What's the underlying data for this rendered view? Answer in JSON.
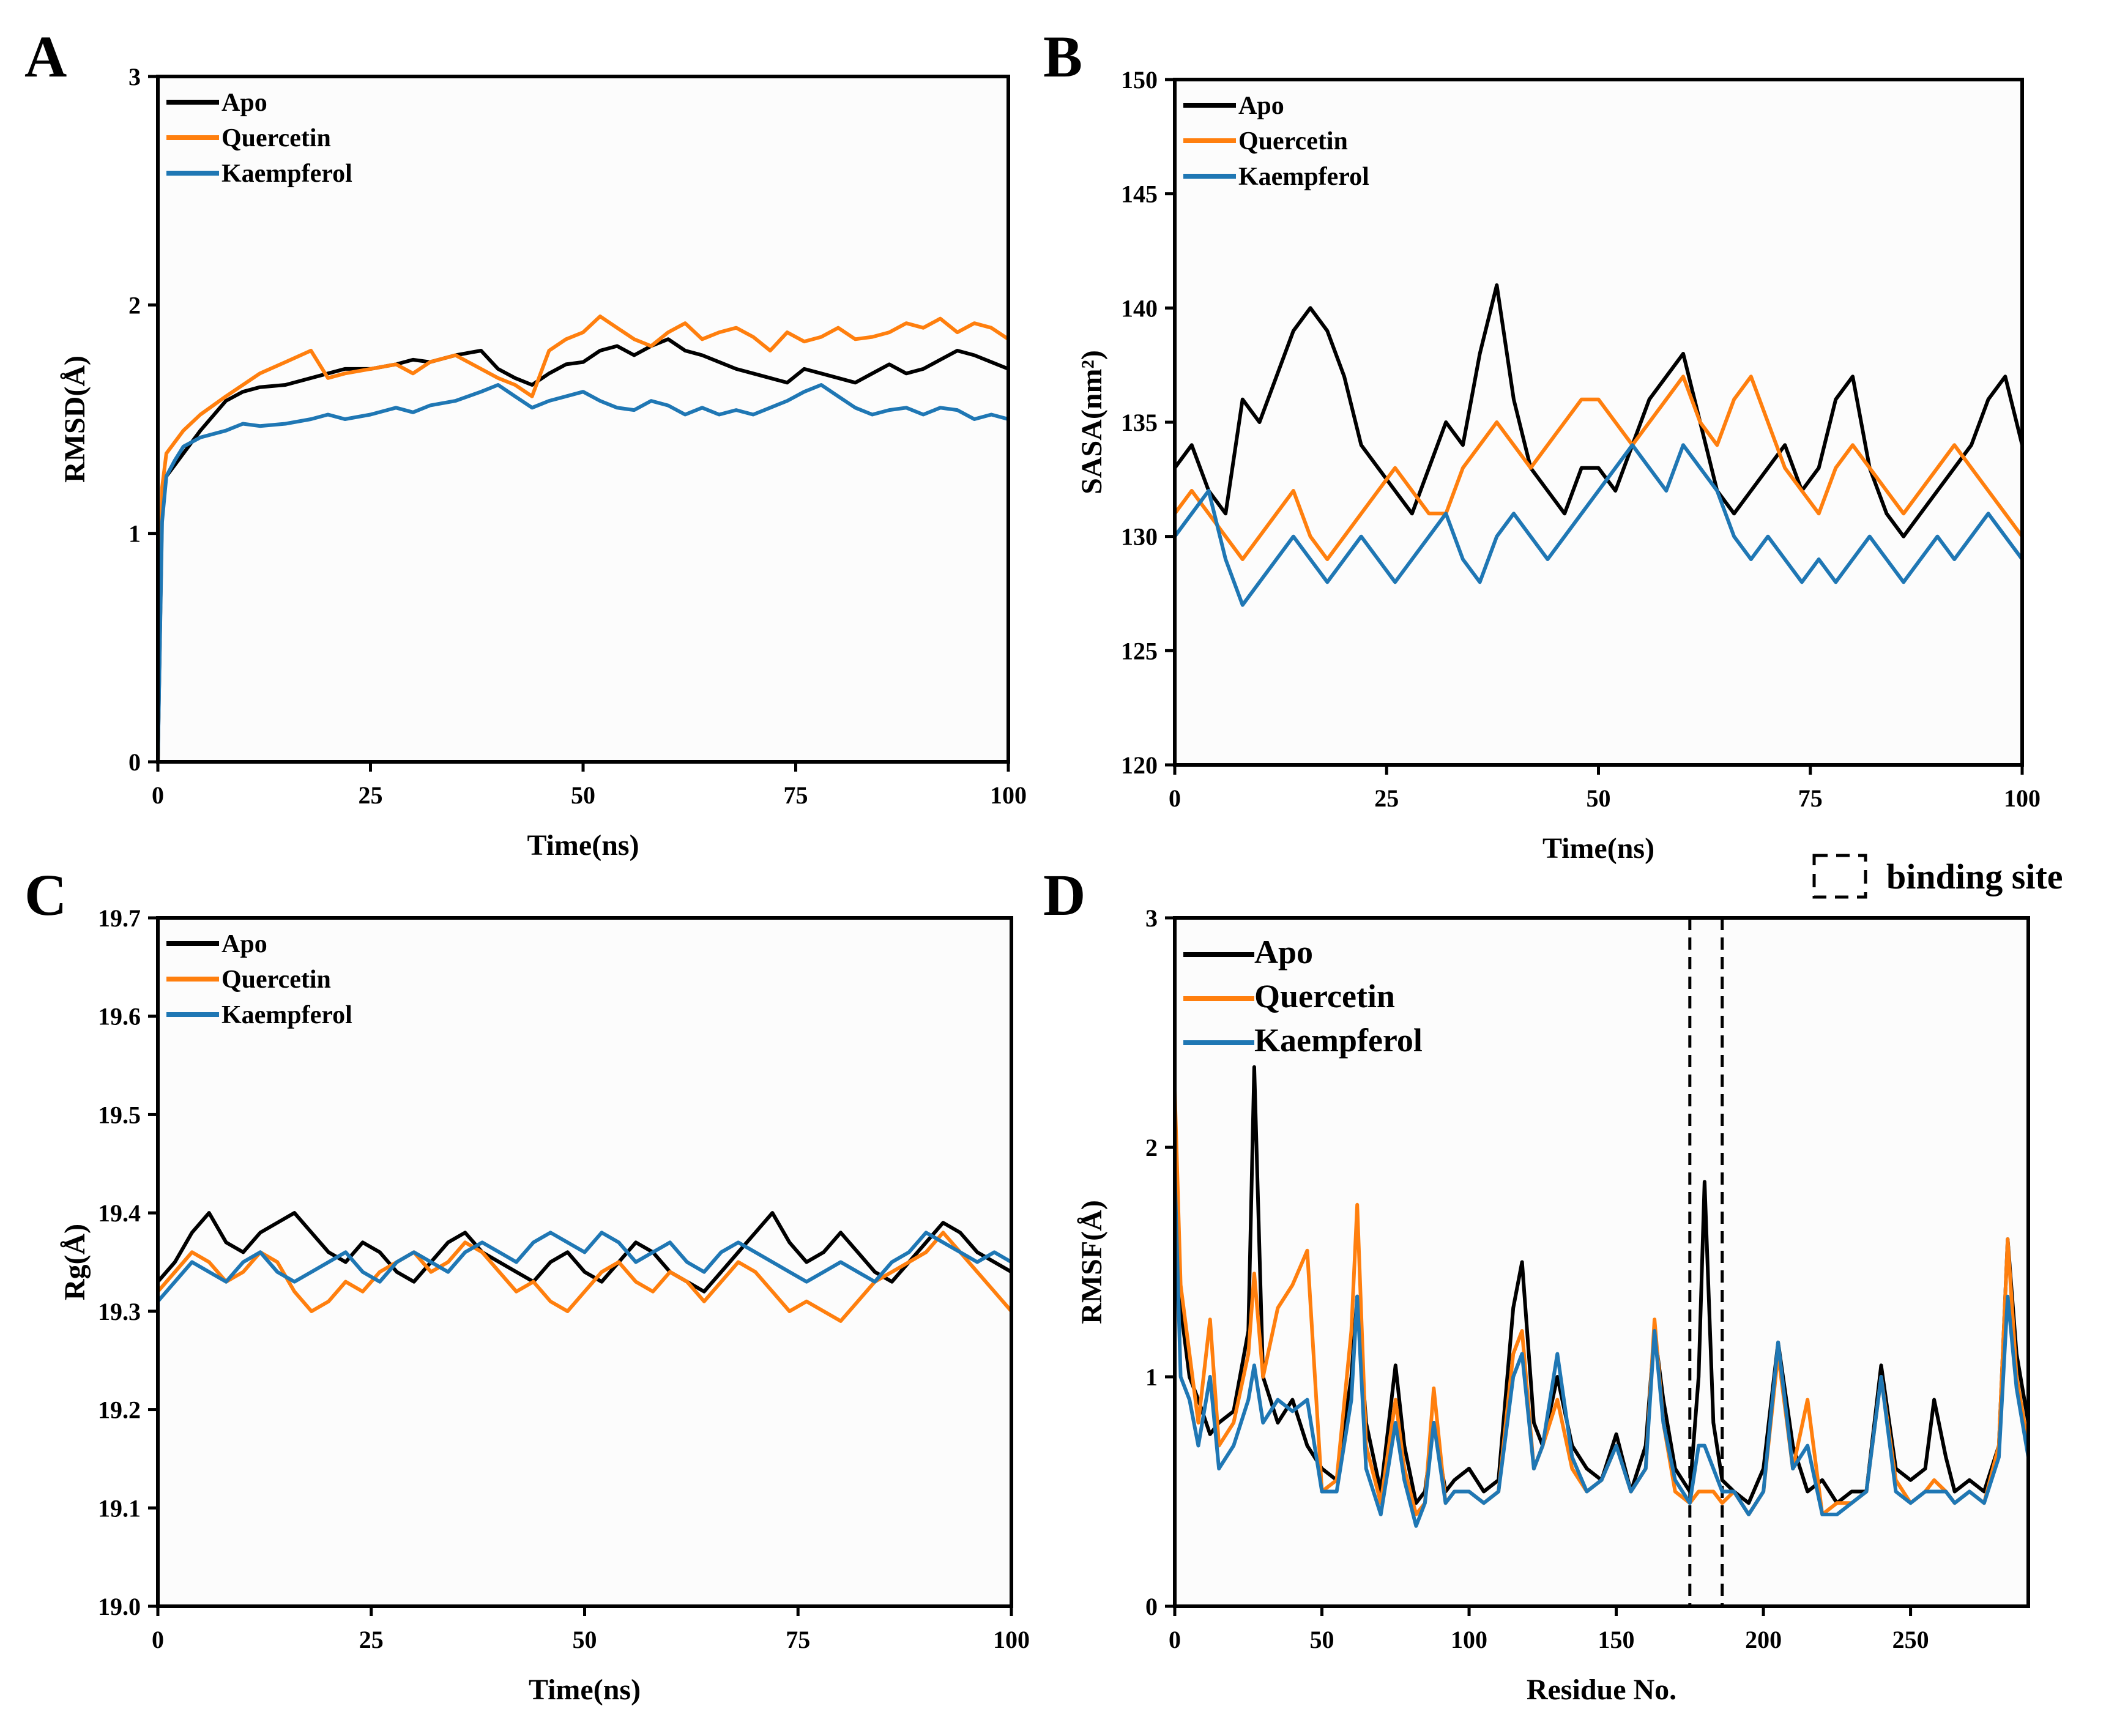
{
  "colors": {
    "Apo": "#000000",
    "Quercetin": "#ff7f0e",
    "Kaempferol": "#1f77b4"
  },
  "binding_site_label": "binding site",
  "chart_data": [
    {
      "id": "A",
      "panel_letter": "A",
      "type": "line",
      "xlabel": "Time(ns)",
      "ylabel": "RMSD(Å)",
      "xlim": [
        0,
        100
      ],
      "ylim": [
        0,
        3
      ],
      "xticks": [
        0,
        25,
        50,
        75,
        100
      ],
      "yticks": [
        0,
        1,
        2,
        3
      ],
      "legend_position": "top-left",
      "grid": false,
      "x": [
        0,
        0.5,
        1,
        2,
        3,
        5,
        8,
        10,
        12,
        15,
        18,
        20,
        22,
        25,
        28,
        30,
        32,
        35,
        38,
        40,
        42,
        44,
        46,
        48,
        50,
        52,
        54,
        56,
        58,
        60,
        62,
        64,
        66,
        68,
        70,
        72,
        74,
        76,
        78,
        80,
        82,
        84,
        86,
        88,
        90,
        92,
        94,
        96,
        98,
        100
      ],
      "series": [
        {
          "name": "Apo",
          "values": [
            0,
            1.1,
            1.25,
            1.3,
            1.35,
            1.45,
            1.58,
            1.62,
            1.64,
            1.65,
            1.68,
            1.7,
            1.72,
            1.72,
            1.74,
            1.76,
            1.75,
            1.78,
            1.8,
            1.72,
            1.68,
            1.65,
            1.7,
            1.74,
            1.75,
            1.8,
            1.82,
            1.78,
            1.82,
            1.85,
            1.8,
            1.78,
            1.75,
            1.72,
            1.7,
            1.68,
            1.66,
            1.72,
            1.7,
            1.68,
            1.66,
            1.7,
            1.74,
            1.7,
            1.72,
            1.76,
            1.8,
            1.78,
            1.75,
            1.72
          ]
        },
        {
          "name": "Quercetin",
          "values": [
            0,
            1.2,
            1.35,
            1.4,
            1.45,
            1.52,
            1.6,
            1.65,
            1.7,
            1.75,
            1.8,
            1.68,
            1.7,
            1.72,
            1.74,
            1.7,
            1.75,
            1.78,
            1.72,
            1.68,
            1.65,
            1.6,
            1.8,
            1.85,
            1.88,
            1.95,
            1.9,
            1.85,
            1.82,
            1.88,
            1.92,
            1.85,
            1.88,
            1.9,
            1.86,
            1.8,
            1.88,
            1.84,
            1.86,
            1.9,
            1.85,
            1.86,
            1.88,
            1.92,
            1.9,
            1.94,
            1.88,
            1.92,
            1.9,
            1.85
          ]
        },
        {
          "name": "Kaempferol",
          "values": [
            0,
            1.05,
            1.25,
            1.32,
            1.38,
            1.42,
            1.45,
            1.48,
            1.47,
            1.48,
            1.5,
            1.52,
            1.5,
            1.52,
            1.55,
            1.53,
            1.56,
            1.58,
            1.62,
            1.65,
            1.6,
            1.55,
            1.58,
            1.6,
            1.62,
            1.58,
            1.55,
            1.54,
            1.58,
            1.56,
            1.52,
            1.55,
            1.52,
            1.54,
            1.52,
            1.55,
            1.58,
            1.62,
            1.65,
            1.6,
            1.55,
            1.52,
            1.54,
            1.55,
            1.52,
            1.55,
            1.54,
            1.5,
            1.52,
            1.5
          ]
        }
      ]
    },
    {
      "id": "B",
      "panel_letter": "B",
      "type": "line",
      "xlabel": "Time(ns)",
      "ylabel": "SASA(nm²)",
      "xlim": [
        0,
        100
      ],
      "ylim": [
        120,
        150
      ],
      "xticks": [
        0,
        25,
        50,
        75,
        100
      ],
      "yticks": [
        120,
        125,
        130,
        135,
        140,
        145,
        150
      ],
      "legend_position": "top-left",
      "grid": false,
      "x": [
        0,
        2,
        4,
        6,
        8,
        10,
        12,
        14,
        16,
        18,
        20,
        22,
        24,
        26,
        28,
        30,
        32,
        34,
        36,
        38,
        40,
        42,
        44,
        46,
        48,
        50,
        52,
        54,
        56,
        58,
        60,
        62,
        64,
        66,
        68,
        70,
        72,
        74,
        76,
        78,
        80,
        82,
        84,
        86,
        88,
        90,
        92,
        94,
        96,
        98,
        100
      ],
      "series": [
        {
          "name": "Apo",
          "values": [
            133,
            134,
            132,
            131,
            136,
            135,
            137,
            139,
            140,
            139,
            137,
            134,
            133,
            132,
            131,
            133,
            135,
            134,
            138,
            141,
            136,
            133,
            132,
            131,
            133,
            133,
            132,
            134,
            136,
            137,
            138,
            135,
            132,
            131,
            132,
            133,
            134,
            132,
            133,
            136,
            137,
            133,
            131,
            130,
            131,
            132,
            133,
            134,
            136,
            137,
            134
          ]
        },
        {
          "name": "Quercetin",
          "values": [
            131,
            132,
            131,
            130,
            129,
            130,
            131,
            132,
            130,
            129,
            130,
            131,
            132,
            133,
            132,
            131,
            131,
            133,
            134,
            135,
            134,
            133,
            134,
            135,
            136,
            136,
            135,
            134,
            135,
            136,
            137,
            135,
            134,
            136,
            137,
            135,
            133,
            132,
            131,
            133,
            134,
            133,
            132,
            131,
            132,
            133,
            134,
            133,
            132,
            131,
            130
          ]
        },
        {
          "name": "Kaempferol",
          "values": [
            130,
            131,
            132,
            129,
            127,
            128,
            129,
            130,
            129,
            128,
            129,
            130,
            129,
            128,
            129,
            130,
            131,
            129,
            128,
            130,
            131,
            130,
            129,
            130,
            131,
            132,
            133,
            134,
            133,
            132,
            134,
            133,
            132,
            130,
            129,
            130,
            129,
            128,
            129,
            128,
            129,
            130,
            129,
            128,
            129,
            130,
            129,
            130,
            131,
            130,
            129
          ]
        }
      ]
    },
    {
      "id": "C",
      "panel_letter": "C",
      "type": "line",
      "xlabel": "Time(ns)",
      "ylabel": "Rg(Å)",
      "xlim": [
        0,
        100
      ],
      "ylim": [
        19.0,
        19.7
      ],
      "xticks": [
        0,
        25,
        50,
        75,
        100
      ],
      "yticks": [
        "19.0",
        "19.1",
        "19.2",
        "19.3",
        "19.4",
        "19.5",
        "19.6",
        "19.7"
      ],
      "legend_position": "top-left",
      "grid": false,
      "x": [
        0,
        2,
        4,
        6,
        8,
        10,
        12,
        14,
        16,
        18,
        20,
        22,
        24,
        26,
        28,
        30,
        32,
        34,
        36,
        38,
        40,
        42,
        44,
        46,
        48,
        50,
        52,
        54,
        56,
        58,
        60,
        62,
        64,
        66,
        68,
        70,
        72,
        74,
        76,
        78,
        80,
        82,
        84,
        86,
        88,
        90,
        92,
        94,
        96,
        98,
        100
      ],
      "series": [
        {
          "name": "Apo",
          "values": [
            19.33,
            19.35,
            19.38,
            19.4,
            19.37,
            19.36,
            19.38,
            19.39,
            19.4,
            19.38,
            19.36,
            19.35,
            19.37,
            19.36,
            19.34,
            19.33,
            19.35,
            19.37,
            19.38,
            19.36,
            19.35,
            19.34,
            19.33,
            19.35,
            19.36,
            19.34,
            19.33,
            19.35,
            19.37,
            19.36,
            19.34,
            19.33,
            19.32,
            19.34,
            19.36,
            19.38,
            19.4,
            19.37,
            19.35,
            19.36,
            19.38,
            19.36,
            19.34,
            19.33,
            19.35,
            19.37,
            19.39,
            19.38,
            19.36,
            19.35,
            19.34
          ]
        },
        {
          "name": "Quercetin",
          "values": [
            19.32,
            19.34,
            19.36,
            19.35,
            19.33,
            19.34,
            19.36,
            19.35,
            19.32,
            19.3,
            19.31,
            19.33,
            19.32,
            19.34,
            19.35,
            19.36,
            19.34,
            19.35,
            19.37,
            19.36,
            19.34,
            19.32,
            19.33,
            19.31,
            19.3,
            19.32,
            19.34,
            19.35,
            19.33,
            19.32,
            19.34,
            19.33,
            19.31,
            19.33,
            19.35,
            19.34,
            19.32,
            19.3,
            19.31,
            19.3,
            19.29,
            19.31,
            19.33,
            19.34,
            19.35,
            19.36,
            19.38,
            19.36,
            19.34,
            19.32,
            19.3
          ]
        },
        {
          "name": "Kaempferol",
          "values": [
            19.31,
            19.33,
            19.35,
            19.34,
            19.33,
            19.35,
            19.36,
            19.34,
            19.33,
            19.34,
            19.35,
            19.36,
            19.34,
            19.33,
            19.35,
            19.36,
            19.35,
            19.34,
            19.36,
            19.37,
            19.36,
            19.35,
            19.37,
            19.38,
            19.37,
            19.36,
            19.38,
            19.37,
            19.35,
            19.36,
            19.37,
            19.35,
            19.34,
            19.36,
            19.37,
            19.36,
            19.35,
            19.34,
            19.33,
            19.34,
            19.35,
            19.34,
            19.33,
            19.35,
            19.36,
            19.38,
            19.37,
            19.36,
            19.35,
            19.36,
            19.35
          ]
        }
      ]
    },
    {
      "id": "D",
      "panel_letter": "D",
      "type": "line",
      "xlabel": "Residue No.",
      "ylabel": "RMSF(Å)",
      "xlim": [
        0,
        290
      ],
      "ylim": [
        0,
        3
      ],
      "xticks": [
        0,
        50,
        100,
        150,
        200,
        250
      ],
      "yticks": [
        0,
        1,
        2,
        3
      ],
      "legend_position": "top-left",
      "grid": false,
      "binding_site": [
        175,
        186
      ],
      "x": [
        0,
        2,
        5,
        8,
        12,
        15,
        20,
        25,
        27,
        30,
        35,
        40,
        45,
        50,
        55,
        60,
        62,
        65,
        70,
        75,
        78,
        82,
        85,
        88,
        92,
        95,
        100,
        105,
        110,
        115,
        118,
        122,
        125,
        130,
        135,
        140,
        145,
        150,
        155,
        160,
        163,
        166,
        170,
        175,
        178,
        180,
        183,
        186,
        190,
        195,
        200,
        205,
        210,
        215,
        220,
        225,
        230,
        235,
        240,
        245,
        250,
        255,
        258,
        262,
        265,
        270,
        275,
        280,
        283,
        286,
        290
      ],
      "series": [
        {
          "name": "Apo",
          "values": [
            1.9,
            1.3,
            1.0,
            0.9,
            0.75,
            0.8,
            0.85,
            1.2,
            2.35,
            1.0,
            0.8,
            0.9,
            0.7,
            0.6,
            0.55,
            1.0,
            1.35,
            0.8,
            0.5,
            1.05,
            0.7,
            0.45,
            0.5,
            0.8,
            0.5,
            0.55,
            0.6,
            0.5,
            0.55,
            1.3,
            1.5,
            0.8,
            0.7,
            1.0,
            0.7,
            0.6,
            0.55,
            0.75,
            0.5,
            0.7,
            1.2,
            0.9,
            0.6,
            0.5,
            1.0,
            1.85,
            0.8,
            0.55,
            0.5,
            0.45,
            0.6,
            1.15,
            0.7,
            0.5,
            0.55,
            0.45,
            0.5,
            0.5,
            1.05,
            0.6,
            0.55,
            0.6,
            0.9,
            0.65,
            0.5,
            0.55,
            0.5,
            0.7,
            1.6,
            1.1,
            0.8
          ]
        },
        {
          "name": "Quercetin",
          "values": [
            2.25,
            1.4,
            1.1,
            0.8,
            1.25,
            0.7,
            0.8,
            1.1,
            1.45,
            1.0,
            1.3,
            1.4,
            1.55,
            0.5,
            0.55,
            1.2,
            1.75,
            0.7,
            0.45,
            0.9,
            0.6,
            0.4,
            0.45,
            0.95,
            0.45,
            0.5,
            0.5,
            0.45,
            0.5,
            1.1,
            1.2,
            0.6,
            0.7,
            0.9,
            0.6,
            0.5,
            0.55,
            0.7,
            0.5,
            0.6,
            1.25,
            0.8,
            0.5,
            0.45,
            0.5,
            0.5,
            0.5,
            0.45,
            0.5,
            0.4,
            0.5,
            1.1,
            0.6,
            0.9,
            0.4,
            0.45,
            0.45,
            0.5,
            1.0,
            0.55,
            0.45,
            0.5,
            0.55,
            0.5,
            0.45,
            0.5,
            0.45,
            0.7,
            1.6,
            1.0,
            0.7
          ]
        },
        {
          "name": "Kaempferol",
          "values": [
            1.9,
            1.0,
            0.9,
            0.7,
            1.0,
            0.6,
            0.7,
            0.9,
            1.05,
            0.8,
            0.9,
            0.85,
            0.9,
            0.5,
            0.5,
            0.9,
            1.35,
            0.6,
            0.4,
            0.8,
            0.55,
            0.35,
            0.45,
            0.8,
            0.45,
            0.5,
            0.5,
            0.45,
            0.5,
            1.0,
            1.1,
            0.6,
            0.7,
            1.1,
            0.65,
            0.5,
            0.55,
            0.7,
            0.5,
            0.6,
            1.2,
            0.8,
            0.55,
            0.45,
            0.7,
            0.7,
            0.6,
            0.5,
            0.5,
            0.4,
            0.5,
            1.15,
            0.6,
            0.7,
            0.4,
            0.4,
            0.45,
            0.5,
            1.0,
            0.5,
            0.45,
            0.5,
            0.5,
            0.5,
            0.45,
            0.5,
            0.45,
            0.65,
            1.35,
            0.95,
            0.65
          ]
        }
      ]
    }
  ]
}
